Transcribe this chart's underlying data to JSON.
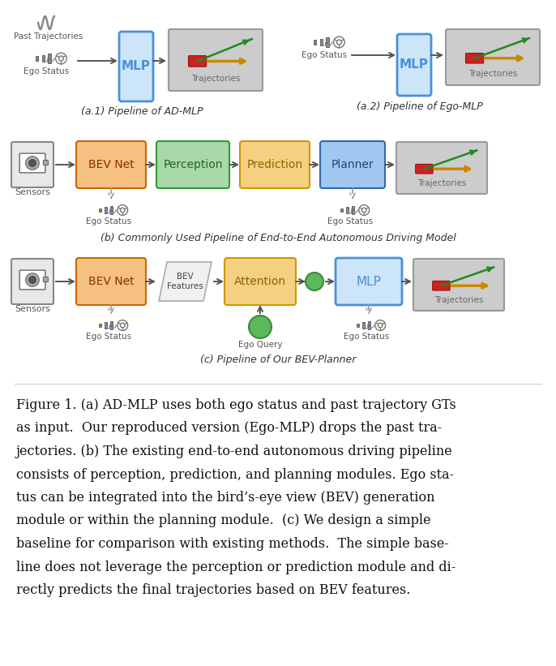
{
  "bg_color": "#ffffff",
  "fig_width": 6.86,
  "fig_height": 8.21,
  "colors": {
    "mlp_fill": "#cce5f8",
    "mlp_edge": "#4a90d9",
    "bev_net_fill": "#f5c080",
    "bev_net_edge": "#cc6600",
    "perception_fill": "#a8d8a8",
    "perception_edge": "#339933",
    "prediction_fill": "#f5d080",
    "prediction_edge": "#cc9900",
    "planner_fill": "#a0c8f0",
    "planner_edge": "#3366aa",
    "attention_fill": "#f5d080",
    "attention_edge": "#cc9900",
    "traj_fill": "#cccccc",
    "traj_edge": "#999999",
    "sensor_fill": "#e8e8e8",
    "sensor_edge": "#888888",
    "ego_query_fill": "#5cb85c",
    "ego_query_edge": "#3a8a3a",
    "bev_feat_fill": "#f0f0f0",
    "bev_feat_edge": "#aaaaaa",
    "arrow_color": "#555555",
    "dashed_color": "#999999",
    "text_dark": "#222222",
    "text_mid": "#444444",
    "text_light": "#666666"
  },
  "caption_lines": [
    "Figure 1. (a) AD-MLP uses both ego status and past trajectory GTs",
    "as input.  Our reproduced version (Ego-MLP) drops the past tra-",
    "jectories. (b) The existing end-to-end autonomous driving pipeline",
    "consists of perception, prediction, and planning modules. Ego sta-",
    "tus can be integrated into the bird’s-eye view (BEV) generation",
    "module or within the planning module.  (c) We design a simple",
    "baseline for comparison with existing methods.  The simple base-",
    "line does not leverage the perception or prediction module and di-",
    "rectly predicts the final trajectories based on BEV features."
  ]
}
